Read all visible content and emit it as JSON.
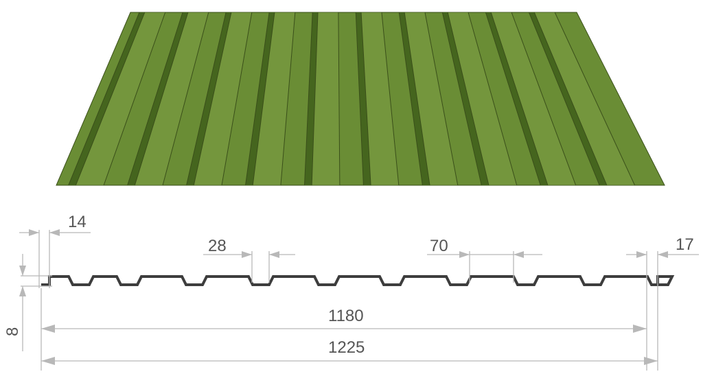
{
  "diagram": {
    "colors": {
      "sheet_face": "#6a8d35",
      "sheet_rib_dark": "#45651e",
      "sheet_rib_light": "#86a84c",
      "sheet_outline": "#3a4f1a",
      "profile_line": "#3d3d3d",
      "dimension_line": "#b8b8b8",
      "dimension_text": "#555555"
    },
    "dimensions": {
      "edge_left": "14",
      "rib_top_width": "28",
      "rib_pitch": "70",
      "edge_right": "17",
      "height": "8",
      "useful_width": "1180",
      "full_width": "1225"
    }
  }
}
